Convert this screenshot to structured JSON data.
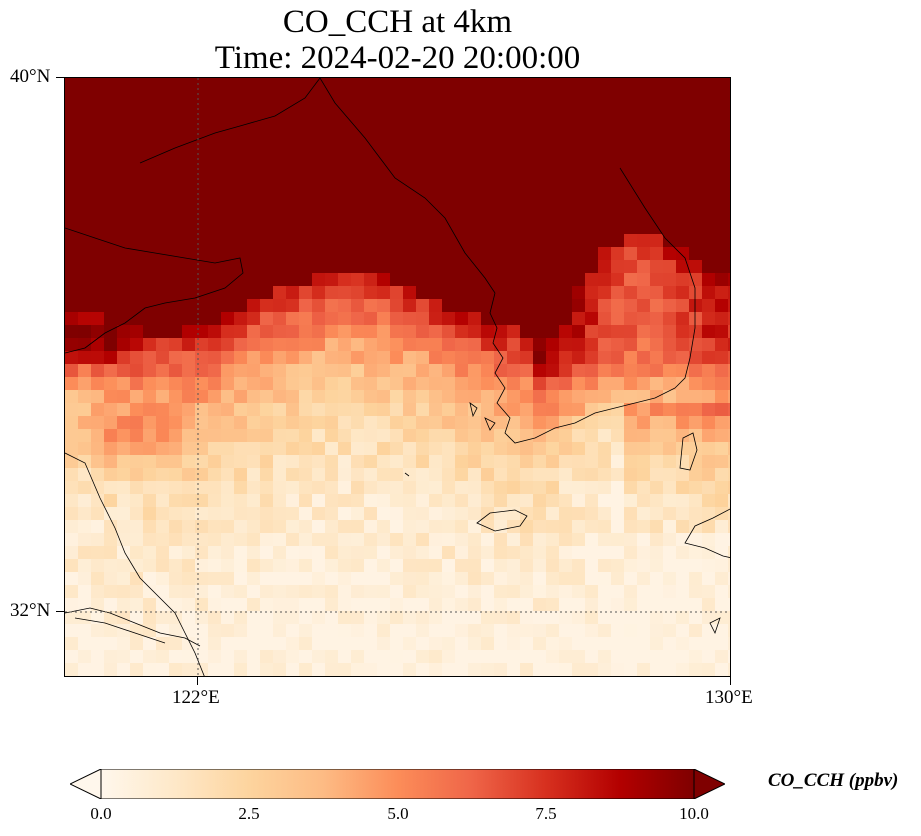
{
  "title": {
    "line1": "CO_CCH at 4km",
    "line2": "Time: 2024-02-20 20:00:00"
  },
  "map": {
    "lat_ticks": [
      "40°N",
      "32°N"
    ],
    "lon_ticks": [
      "122°E",
      "130°E"
    ],
    "extent": {
      "lon_min": 120,
      "lon_max": 130,
      "lat_min": 31,
      "lat_max": 40
    },
    "gridlines": {
      "lon": 122,
      "lat": 32,
      "style": "dotted"
    },
    "colormap": "OrRd",
    "field_summary": "CO_CCH high (>=10 ppbv) over north of domain (Shandong, Bohai, Korea interior), tapering to ~0-2 ppbv in south"
  },
  "colorbar": {
    "label": "CO_CCH (ppbv)",
    "ticks": [
      "0.0",
      "2.5",
      "5.0",
      "7.5",
      "10.0"
    ],
    "vmin": 0,
    "vmax": 10,
    "extend": "both",
    "colors": [
      "#fff7ec",
      "#fee8c8",
      "#fdd49e",
      "#fdbb84",
      "#fc8d59",
      "#ef6548",
      "#d7301f",
      "#b30000",
      "#7f0000"
    ]
  }
}
